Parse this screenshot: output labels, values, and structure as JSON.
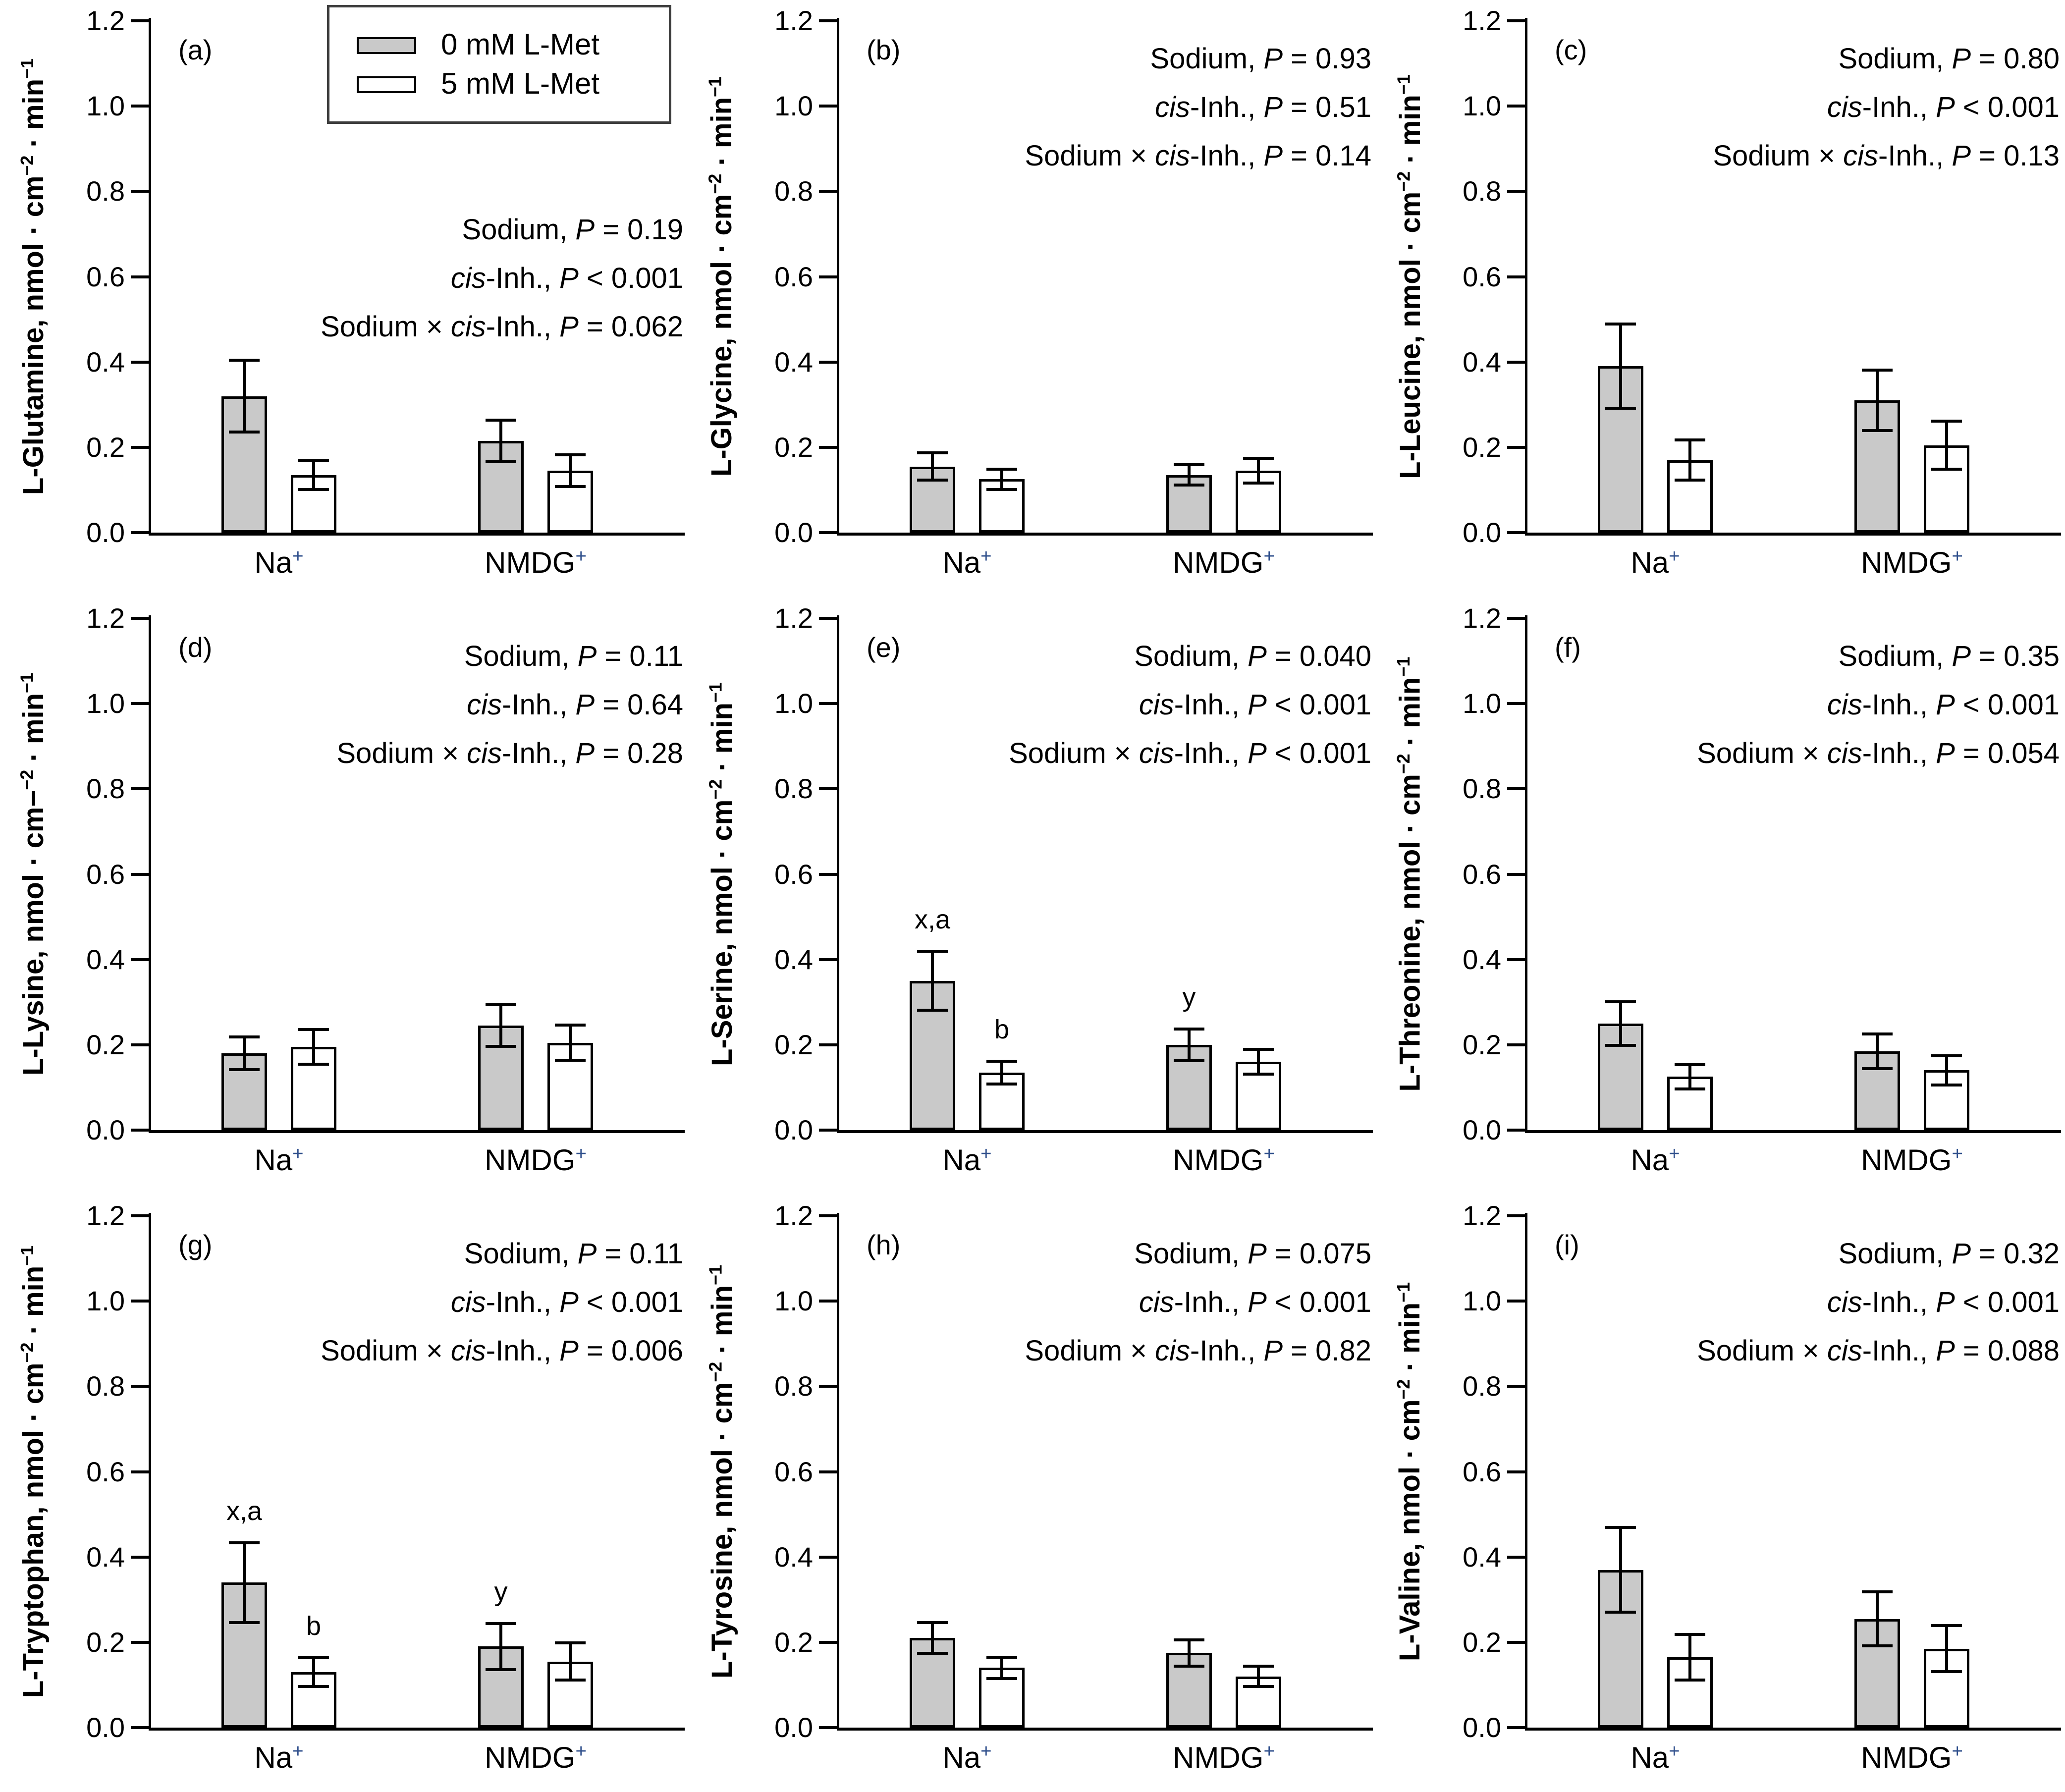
{
  "figure": {
    "plus_color": "#30508c",
    "bar_border_color": "#000000",
    "legend": {
      "items": [
        {
          "label": "0 mM L-Met",
          "swatch": "#c9c9c9"
        },
        {
          "label": "5 mM L-Met",
          "swatch": "#ffffff"
        }
      ]
    },
    "categories": [
      "Na",
      "NMDG"
    ],
    "cat_sup": "+",
    "y_ticks": [
      "0.0",
      "0.2",
      "0.4",
      "0.6",
      "0.8",
      "1.0",
      "1.2"
    ]
  },
  "chart_data": [
    {
      "type": "bar",
      "panel": "(a)",
      "analyte": "L-Glutamine,",
      "units": {
        "pre": " nmol · cm",
        "sup1": "−2",
        "mid": " · min",
        "sup2": "−1"
      },
      "categories": [
        "Na+",
        "NMDG+"
      ],
      "ylim": [
        0,
        1.2
      ],
      "series": [
        {
          "name": "0 mM L-Met",
          "fill": "#c9c9c9",
          "values": [
            0.32,
            0.215
          ],
          "errors": [
            0.085,
            0.05
          ]
        },
        {
          "name": "5 mM L-Met",
          "fill": "#ffffff",
          "values": [
            0.135,
            0.145
          ],
          "errors": [
            0.035,
            0.038
          ]
        }
      ],
      "stats": [
        [
          {
            "t": "Sodium, ",
            "i": false
          },
          {
            "t": "P",
            "i": true
          },
          {
            "t": " = 0.19",
            "i": false
          }
        ],
        [
          {
            "t": "cis",
            "i": true
          },
          {
            "t": "-Inh., ",
            "i": false
          },
          {
            "t": "P",
            "i": true
          },
          {
            "t": " < 0.001",
            "i": false
          }
        ],
        [
          {
            "t": "Sodium × ",
            "i": false
          },
          {
            "t": "cis",
            "i": true
          },
          {
            "t": "-Inh., ",
            "i": false
          },
          {
            "t": "P",
            "i": true
          },
          {
            "t": " = 0.062",
            "i": false
          }
        ]
      ]
    },
    {
      "type": "bar",
      "panel": "(b)",
      "analyte": "L-Glycine,",
      "units": {
        "pre": " nmol · cm",
        "sup1": "−2",
        "mid": " · min",
        "sup2": "−1"
      },
      "categories": [
        "Na+",
        "NMDG+"
      ],
      "ylim": [
        0,
        1.2
      ],
      "series": [
        {
          "name": "0 mM L-Met",
          "fill": "#c9c9c9",
          "values": [
            0.155,
            0.135
          ],
          "errors": [
            0.033,
            0.025
          ]
        },
        {
          "name": "5 mM L-Met",
          "fill": "#ffffff",
          "values": [
            0.125,
            0.145
          ],
          "errors": [
            0.025,
            0.03
          ]
        }
      ],
      "stats": [
        [
          {
            "t": "Sodium, ",
            "i": false
          },
          {
            "t": "P",
            "i": true
          },
          {
            "t": " = 0.93",
            "i": false
          }
        ],
        [
          {
            "t": "cis",
            "i": true
          },
          {
            "t": "-Inh., ",
            "i": false
          },
          {
            "t": "P",
            "i": true
          },
          {
            "t": " = 0.51",
            "i": false
          }
        ],
        [
          {
            "t": "Sodium × ",
            "i": false
          },
          {
            "t": "cis",
            "i": true
          },
          {
            "t": "-Inh., ",
            "i": false
          },
          {
            "t": "P",
            "i": true
          },
          {
            "t": " = 0.14",
            "i": false
          }
        ]
      ]
    },
    {
      "type": "bar",
      "panel": "(c)",
      "analyte": "L-Leucine,",
      "units": {
        "pre": " nmol · cm",
        "sup1": "−2",
        "mid": " · min",
        "sup2": "−1"
      },
      "categories": [
        "Na+",
        "NMDG+"
      ],
      "ylim": [
        0,
        1.2
      ],
      "series": [
        {
          "name": "0 mM L-Met",
          "fill": "#c9c9c9",
          "values": [
            0.39,
            0.31
          ],
          "errors": [
            0.1,
            0.072
          ]
        },
        {
          "name": "5 mM L-Met",
          "fill": "#ffffff",
          "values": [
            0.17,
            0.205
          ],
          "errors": [
            0.048,
            0.058
          ]
        }
      ],
      "stats": [
        [
          {
            "t": "Sodium, ",
            "i": false
          },
          {
            "t": "P",
            "i": true
          },
          {
            "t": " = 0.80",
            "i": false
          }
        ],
        [
          {
            "t": "cis",
            "i": true
          },
          {
            "t": "-Inh., ",
            "i": false
          },
          {
            "t": "P",
            "i": true
          },
          {
            "t": " < 0.001",
            "i": false
          }
        ],
        [
          {
            "t": "Sodium × ",
            "i": false
          },
          {
            "t": "cis",
            "i": true
          },
          {
            "t": "-Inh., ",
            "i": false
          },
          {
            "t": "P",
            "i": true
          },
          {
            "t": " = 0.13",
            "i": false
          }
        ]
      ]
    },
    {
      "type": "bar",
      "panel": "(d)",
      "analyte": "L-Lysine,",
      "units": {
        "pre": " nmol · cm−",
        "sup1": "−2",
        "mid": " · min",
        "sup2": "−1"
      },
      "categories": [
        "Na+",
        "NMDG+"
      ],
      "ylim": [
        0,
        1.2
      ],
      "series": [
        {
          "name": "0 mM L-Met",
          "fill": "#c9c9c9",
          "values": [
            0.18,
            0.245
          ],
          "errors": [
            0.04,
            0.05
          ]
        },
        {
          "name": "5 mM L-Met",
          "fill": "#ffffff",
          "values": [
            0.195,
            0.205
          ],
          "errors": [
            0.042,
            0.042
          ]
        }
      ],
      "stats": [
        [
          {
            "t": "Sodium, ",
            "i": false
          },
          {
            "t": "P",
            "i": true
          },
          {
            "t": " = 0.11",
            "i": false
          }
        ],
        [
          {
            "t": "cis",
            "i": true
          },
          {
            "t": "-Inh., ",
            "i": false
          },
          {
            "t": "P",
            "i": true
          },
          {
            "t": " = 0.64",
            "i": false
          }
        ],
        [
          {
            "t": "Sodium × ",
            "i": false
          },
          {
            "t": "cis",
            "i": true
          },
          {
            "t": "-Inh., ",
            "i": false
          },
          {
            "t": "P",
            "i": true
          },
          {
            "t": " = 0.28",
            "i": false
          }
        ]
      ]
    },
    {
      "type": "bar",
      "panel": "(e)",
      "analyte": "L-Serine,",
      "units": {
        "pre": " nmol · cm",
        "sup1": "−2",
        "mid": " · min",
        "sup2": "−1"
      },
      "categories": [
        "Na+",
        "NMDG+"
      ],
      "ylim": [
        0,
        1.2
      ],
      "series": [
        {
          "name": "0 mM L-Met",
          "fill": "#c9c9c9",
          "values": [
            0.35,
            0.2
          ],
          "errors": [
            0.07,
            0.038
          ]
        },
        {
          "name": "5 mM L-Met",
          "fill": "#ffffff",
          "values": [
            0.135,
            0.16
          ],
          "errors": [
            0.028,
            0.03
          ]
        }
      ],
      "sig": [
        [
          "x,a",
          "y"
        ],
        [
          "b",
          ""
        ]
      ],
      "stats": [
        [
          {
            "t": "Sodium, ",
            "i": false
          },
          {
            "t": "P",
            "i": true
          },
          {
            "t": " = 0.040",
            "i": false
          }
        ],
        [
          {
            "t": "cis",
            "i": true
          },
          {
            "t": "-Inh., ",
            "i": false
          },
          {
            "t": "P",
            "i": true
          },
          {
            "t": " < 0.001",
            "i": false
          }
        ],
        [
          {
            "t": "Sodium × ",
            "i": false
          },
          {
            "t": "cis",
            "i": true
          },
          {
            "t": "-Inh., ",
            "i": false
          },
          {
            "t": "P",
            "i": true
          },
          {
            "t": " < 0.001",
            "i": false
          }
        ]
      ]
    },
    {
      "type": "bar",
      "panel": "(f)",
      "analyte": "L-Threonine,",
      "units": {
        "pre": " nmol · cm",
        "sup1": "−2",
        "mid": " · min",
        "sup2": "−1"
      },
      "categories": [
        "Na+",
        "NMDG+"
      ],
      "ylim": [
        0,
        1.2
      ],
      "series": [
        {
          "name": "0 mM L-Met",
          "fill": "#c9c9c9",
          "values": [
            0.25,
            0.185
          ],
          "errors": [
            0.052,
            0.042
          ]
        },
        {
          "name": "5 mM L-Met",
          "fill": "#ffffff",
          "values": [
            0.125,
            0.14
          ],
          "errors": [
            0.03,
            0.035
          ]
        }
      ],
      "stats": [
        [
          {
            "t": "Sodium, ",
            "i": false
          },
          {
            "t": "P",
            "i": true
          },
          {
            "t": " = 0.35",
            "i": false
          }
        ],
        [
          {
            "t": "cis",
            "i": true
          },
          {
            "t": "-Inh., ",
            "i": false
          },
          {
            "t": "P",
            "i": true
          },
          {
            "t": " < 0.001",
            "i": false
          }
        ],
        [
          {
            "t": "Sodium × ",
            "i": false
          },
          {
            "t": "cis",
            "i": true
          },
          {
            "t": "-Inh., ",
            "i": false
          },
          {
            "t": "P",
            "i": true
          },
          {
            "t": " = 0.054",
            "i": false
          }
        ]
      ]
    },
    {
      "type": "bar",
      "panel": "(g)",
      "analyte": "L-Tryptophan,",
      "units": {
        "pre": " nmol · cm",
        "sup1": "−2",
        "mid": " · min",
        "sup2": "−1"
      },
      "categories": [
        "Na+",
        "NMDG+"
      ],
      "ylim": [
        0,
        1.2
      ],
      "series": [
        {
          "name": "0 mM L-Met",
          "fill": "#c9c9c9",
          "values": [
            0.34,
            0.19
          ],
          "errors": [
            0.095,
            0.055
          ]
        },
        {
          "name": "5 mM L-Met",
          "fill": "#ffffff",
          "values": [
            0.13,
            0.155
          ],
          "errors": [
            0.035,
            0.045
          ]
        }
      ],
      "sig": [
        [
          "x,a",
          "y"
        ],
        [
          "b",
          ""
        ]
      ],
      "stats": [
        [
          {
            "t": "Sodium, ",
            "i": false
          },
          {
            "t": "P",
            "i": true
          },
          {
            "t": " = 0.11",
            "i": false
          }
        ],
        [
          {
            "t": "cis",
            "i": true
          },
          {
            "t": "-Inh., ",
            "i": false
          },
          {
            "t": "P",
            "i": true
          },
          {
            "t": " < 0.001",
            "i": false
          }
        ],
        [
          {
            "t": "Sodium × ",
            "i": false
          },
          {
            "t": "cis",
            "i": true
          },
          {
            "t": "-Inh., ",
            "i": false
          },
          {
            "t": "P",
            "i": true
          },
          {
            "t": " = 0.006",
            "i": false
          }
        ]
      ]
    },
    {
      "type": "bar",
      "panel": "(h)",
      "analyte": "L-Tyrosine,",
      "units": {
        "pre": " nmol · cm",
        "sup1": "−2",
        "mid": " · min",
        "sup2": "−1"
      },
      "categories": [
        "Na+",
        "NMDG+"
      ],
      "ylim": [
        0,
        1.2
      ],
      "series": [
        {
          "name": "0 mM L-Met",
          "fill": "#c9c9c9",
          "values": [
            0.21,
            0.175
          ],
          "errors": [
            0.037,
            0.032
          ]
        },
        {
          "name": "5 mM L-Met",
          "fill": "#ffffff",
          "values": [
            0.14,
            0.12
          ],
          "errors": [
            0.026,
            0.025
          ]
        }
      ],
      "stats": [
        [
          {
            "t": "Sodium, ",
            "i": false
          },
          {
            "t": "P",
            "i": true
          },
          {
            "t": " = 0.075",
            "i": false
          }
        ],
        [
          {
            "t": "cis",
            "i": true
          },
          {
            "t": "-Inh., ",
            "i": false
          },
          {
            "t": "P",
            "i": true
          },
          {
            "t": " < 0.001",
            "i": false
          }
        ],
        [
          {
            "t": "Sodium × ",
            "i": false
          },
          {
            "t": "cis",
            "i": true
          },
          {
            "t": "-Inh., ",
            "i": false
          },
          {
            "t": "P",
            "i": true
          },
          {
            "t": " = 0.82",
            "i": false
          }
        ]
      ]
    },
    {
      "type": "bar",
      "panel": "(i)",
      "analyte": "L-Valine,",
      "units": {
        "pre": " nmol · cm",
        "sup1": "−2",
        "mid": " · min",
        "sup2": "−1"
      },
      "categories": [
        "Na+",
        "NMDG+"
      ],
      "ylim": [
        0,
        1.2
      ],
      "series": [
        {
          "name": "0 mM L-Met",
          "fill": "#c9c9c9",
          "values": [
            0.37,
            0.255
          ],
          "errors": [
            0.1,
            0.065
          ]
        },
        {
          "name": "5 mM L-Met",
          "fill": "#ffffff",
          "values": [
            0.165,
            0.185
          ],
          "errors": [
            0.055,
            0.055
          ]
        }
      ],
      "stats": [
        [
          {
            "t": "Sodium, ",
            "i": false
          },
          {
            "t": "P",
            "i": true
          },
          {
            "t": " = 0.32",
            "i": false
          }
        ],
        [
          {
            "t": "cis",
            "i": true
          },
          {
            "t": "-Inh., ",
            "i": false
          },
          {
            "t": "P",
            "i": true
          },
          {
            "t": " < 0.001",
            "i": false
          }
        ],
        [
          {
            "t": "Sodium × ",
            "i": false
          },
          {
            "t": "cis",
            "i": true
          },
          {
            "t": "-Inh., ",
            "i": false
          },
          {
            "t": "P",
            "i": true
          },
          {
            "t": " = 0.088",
            "i": false
          }
        ]
      ]
    }
  ]
}
